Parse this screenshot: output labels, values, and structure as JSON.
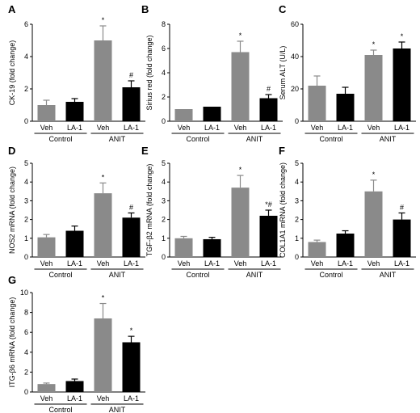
{
  "colors": {
    "veh": "#8a8a8a",
    "la1": "#000000",
    "axis": "#000000"
  },
  "chart_data": [
    {
      "panel": "A",
      "type": "bar",
      "ylabel": "CK-19 (fold change)",
      "ylim": [
        0,
        6
      ],
      "yticks": [
        0,
        2,
        4,
        6
      ],
      "categories": [
        "Veh",
        "LA-1",
        "Veh",
        "LA-1"
      ],
      "groups": [
        "Control",
        "ANIT"
      ],
      "values": [
        1.0,
        1.2,
        5.0,
        2.1
      ],
      "errors": [
        0.3,
        0.2,
        0.9,
        0.4
      ],
      "annotations": [
        "",
        "",
        "*",
        "#"
      ]
    },
    {
      "panel": "B",
      "type": "bar",
      "ylabel": "Sirius red (fold change)",
      "ylim": [
        0,
        8
      ],
      "yticks": [
        0,
        2,
        4,
        6,
        8
      ],
      "categories": [
        "Veh",
        "LA-1",
        "Veh",
        "LA-1"
      ],
      "groups": [
        "Control",
        "ANIT"
      ],
      "values": [
        1.0,
        1.2,
        5.7,
        1.9
      ],
      "errors": [
        0.0,
        0.0,
        0.9,
        0.3
      ],
      "annotations": [
        "",
        "",
        "*",
        "#"
      ]
    },
    {
      "panel": "C",
      "type": "bar",
      "ylabel": "Serum ALT (U/L)",
      "ylim": [
        0,
        60
      ],
      "yticks": [
        0,
        20,
        40,
        60
      ],
      "categories": [
        "Veh",
        "LA-1",
        "Veh",
        "LA-1"
      ],
      "groups": [
        "Control",
        "ANIT"
      ],
      "values": [
        22,
        17,
        41,
        45
      ],
      "errors": [
        6,
        4,
        3,
        4
      ],
      "annotations": [
        "",
        "",
        "*",
        "*"
      ]
    },
    {
      "panel": "D",
      "type": "bar",
      "ylabel": "NOS2 mRNA (fold change)",
      "ylim": [
        0,
        5
      ],
      "yticks": [
        0,
        1,
        2,
        3,
        4,
        5
      ],
      "categories": [
        "Veh",
        "LA-1",
        "Veh",
        "LA-1"
      ],
      "groups": [
        "Control",
        "ANIT"
      ],
      "values": [
        1.05,
        1.4,
        3.4,
        2.1
      ],
      "errors": [
        0.15,
        0.25,
        0.55,
        0.25
      ],
      "annotations": [
        "",
        "",
        "*",
        "#"
      ]
    },
    {
      "panel": "E",
      "type": "bar",
      "ylabel": "TGF-β2 mRNA (fold change)",
      "ylim": [
        0,
        5
      ],
      "yticks": [
        0,
        1,
        2,
        3,
        4,
        5
      ],
      "categories": [
        "Veh",
        "LA-1",
        "Veh",
        "LA-1"
      ],
      "groups": [
        "Control",
        "ANIT"
      ],
      "values": [
        1.0,
        0.95,
        3.7,
        2.2
      ],
      "errors": [
        0.1,
        0.1,
        0.65,
        0.3
      ],
      "annotations": [
        "",
        "",
        "*",
        "*#"
      ]
    },
    {
      "panel": "F",
      "type": "bar",
      "ylabel": "COL1A1 mRNA (fold change)",
      "ylim": [
        0,
        5
      ],
      "yticks": [
        0,
        1,
        2,
        3,
        4,
        5
      ],
      "categories": [
        "Veh",
        "LA-1",
        "Veh",
        "LA-1"
      ],
      "groups": [
        "Control",
        "ANIT"
      ],
      "values": [
        0.8,
        1.25,
        3.5,
        2.0
      ],
      "errors": [
        0.1,
        0.15,
        0.6,
        0.35
      ],
      "annotations": [
        "",
        "",
        "*",
        "#"
      ]
    },
    {
      "panel": "G",
      "type": "bar",
      "ylabel": "ITG-β6 mRNA (fold change)",
      "ylim": [
        0,
        10
      ],
      "yticks": [
        0,
        2,
        4,
        6,
        8,
        10
      ],
      "categories": [
        "Veh",
        "LA-1",
        "Veh",
        "LA-1"
      ],
      "groups": [
        "Control",
        "ANIT"
      ],
      "values": [
        0.8,
        1.1,
        7.4,
        5.0
      ],
      "errors": [
        0.1,
        0.2,
        1.5,
        0.6
      ],
      "annotations": [
        "",
        "",
        "*",
        "*"
      ]
    }
  ]
}
